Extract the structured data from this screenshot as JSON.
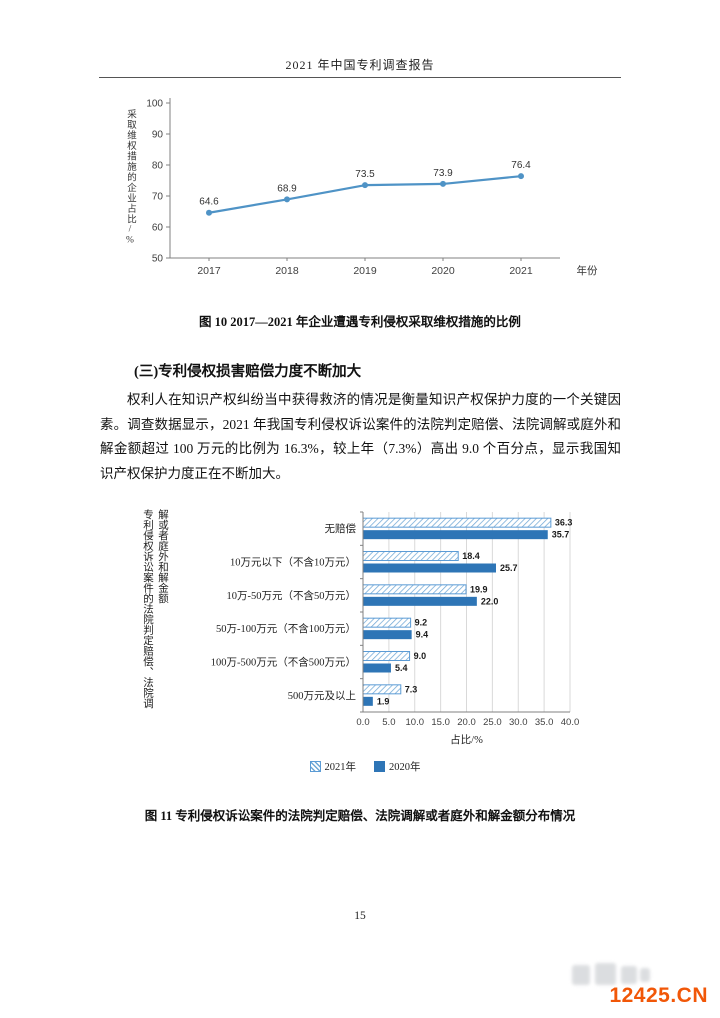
{
  "header": {
    "title": "2021 年中国专利调查报告"
  },
  "figure10": {
    "caption": "图 10   2017—2021 年企业遭遇专利侵权采取维权措施的比例"
  },
  "section": {
    "heading": "(三)专利侵权损害赔偿力度不断加大",
    "paragraph": "权利人在知识产权纠纷当中获得救济的情况是衡量知识产权保护力度的一个关键因素。调查数据显示，2021 年我国专利侵权诉讼案件的法院判定赔偿、法院调解或庭外和解金额超过 100 万元的比例为 16.3%，较上年（7.3%）高出 9.0 个百分点，显示我国知识产权保护力度正在不断加大。"
  },
  "figure11": {
    "caption": "图 11   专利侵权诉讼案件的法院判定赔偿、法院调解或者庭外和解金额分布情况"
  },
  "footer": {
    "page_number": "15",
    "watermark": "12425.CN"
  },
  "chart_data": [
    {
      "type": "line",
      "x": [
        "2017",
        "2018",
        "2019",
        "2020",
        "2021"
      ],
      "values": [
        64.6,
        68.9,
        73.5,
        73.9,
        76.4
      ],
      "ylabel": "采取维权措施的企业占比/%",
      "xlabel": "年份",
      "ylim": [
        50,
        100
      ],
      "yticks": [
        100,
        90,
        80,
        70,
        60,
        50
      ],
      "line_color": "#4f93c6",
      "grid": false,
      "data_labels": true,
      "legend_position": "none"
    },
    {
      "type": "bar",
      "orientation": "horizontal",
      "categories": [
        "无赔偿",
        "10万元以下（不含10万元）",
        "10万-50万元（不含50万元）",
        "50万-100万元（不含100万元）",
        "100万-500万元（不含500万元）",
        "500万元及以上"
      ],
      "series": [
        {
          "name": "2021年",
          "values": [
            36.3,
            18.4,
            19.9,
            9.2,
            9.0,
            7.3
          ],
          "style": "hatched",
          "color": "#6fa8d6"
        },
        {
          "name": "2020年",
          "values": [
            35.7,
            25.7,
            22.0,
            9.4,
            5.4,
            1.9
          ],
          "style": "solid",
          "color": "#2e75b6"
        }
      ],
      "xlabel": "占比/%",
      "ylabel": "专利侵权诉讼案件的法院判定赔偿、法院调解或者庭外和解金额",
      "xlim": [
        0,
        40
      ],
      "xticks": [
        "0.0",
        "5.0",
        "10.0",
        "15.0",
        "20.0",
        "25.0",
        "30.0",
        "35.0",
        "40.0"
      ],
      "grid": true,
      "legend_position": "bottom"
    }
  ]
}
